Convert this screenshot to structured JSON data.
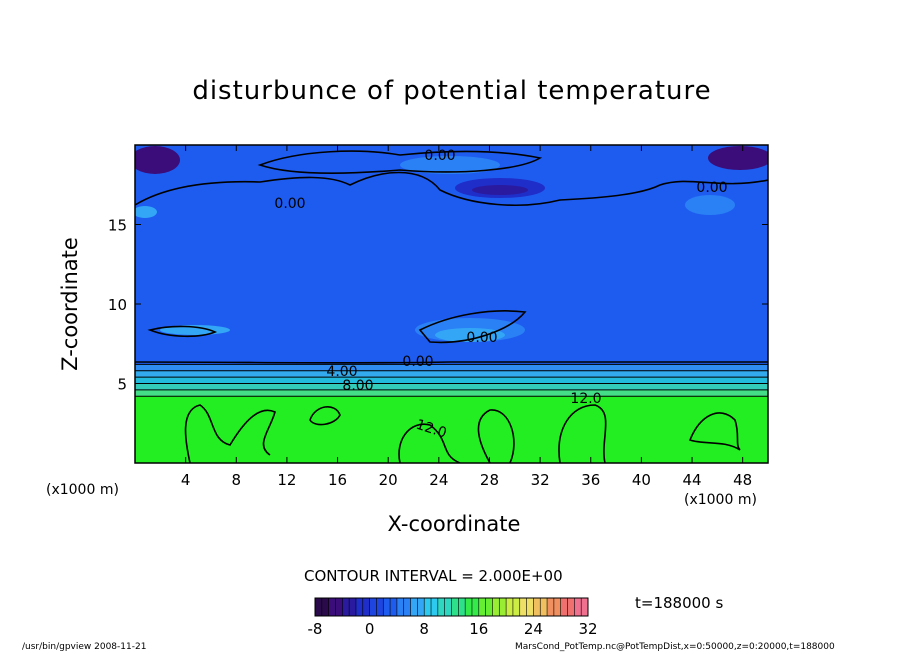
{
  "chart_data": {
    "type": "heatmap",
    "title": "disturbunce of potential temperature",
    "xlabel": "X-coordinate",
    "ylabel": "Z-coordinate",
    "x_unit": "(x1000 m)",
    "z_unit": "(x1000 m)",
    "xlim": [
      0,
      50
    ],
    "zlim": [
      0,
      20
    ],
    "x_ticks": [
      "4",
      "8",
      "12",
      "16",
      "20",
      "24",
      "28",
      "32",
      "36",
      "40",
      "44",
      "48"
    ],
    "z_ticks": [
      "5",
      "10",
      "15"
    ],
    "contour_interval": "CONTOUR INTERVAL = 2.000E+00",
    "contour_labels": [
      "0.00",
      "0.00",
      "0.00",
      "0.00",
      "0.00",
      "4.00",
      "8.00",
      "12.0",
      "12.0"
    ],
    "colorbar": {
      "ticks": [
        "-8",
        "0",
        "8",
        "16",
        "24",
        "32"
      ],
      "range": [
        -8,
        32
      ]
    },
    "time": "t=188000 s",
    "layers": [
      {
        "z_from": 0,
        "z_to": 4.2,
        "value": 13,
        "color": "#22ee22"
      },
      {
        "z_from": 4.2,
        "z_to": 4.6,
        "value": 10,
        "color": "#44dd88"
      },
      {
        "z_from": 4.6,
        "z_to": 5.0,
        "value": 8,
        "color": "#33ccbb"
      },
      {
        "z_from": 5.0,
        "z_to": 5.4,
        "value": 6,
        "color": "#22bbdd"
      },
      {
        "z_from": 5.4,
        "z_to": 5.8,
        "value": 4,
        "color": "#33aaee"
      },
      {
        "z_from": 5.8,
        "z_to": 6.2,
        "value": 2,
        "color": "#2f8cf0"
      },
      {
        "z_from": 6.2,
        "z_to": 20,
        "value": -1,
        "color": "#1e5cf0"
      }
    ]
  },
  "footer": {
    "left": "/usr/bin/gpview   2008-11-21",
    "right": "MarsCond_PotTemp.nc@PotTempDist,x=0:50000,z=0:20000,t=188000"
  },
  "colors": {
    "cb_colors": [
      "#2a0a4a",
      "#3a0d7a",
      "#2a1aa0",
      "#1f2ec8",
      "#1e45e0",
      "#1e5cf0",
      "#2a80f5",
      "#33a6f5",
      "#2ec9ee",
      "#2fd6c0",
      "#2fe08a",
      "#33ea4a",
      "#66ee33",
      "#99ee33",
      "#ccee44",
      "#eee066",
      "#f0c060",
      "#f09060",
      "#f07070",
      "#f07090"
    ]
  }
}
